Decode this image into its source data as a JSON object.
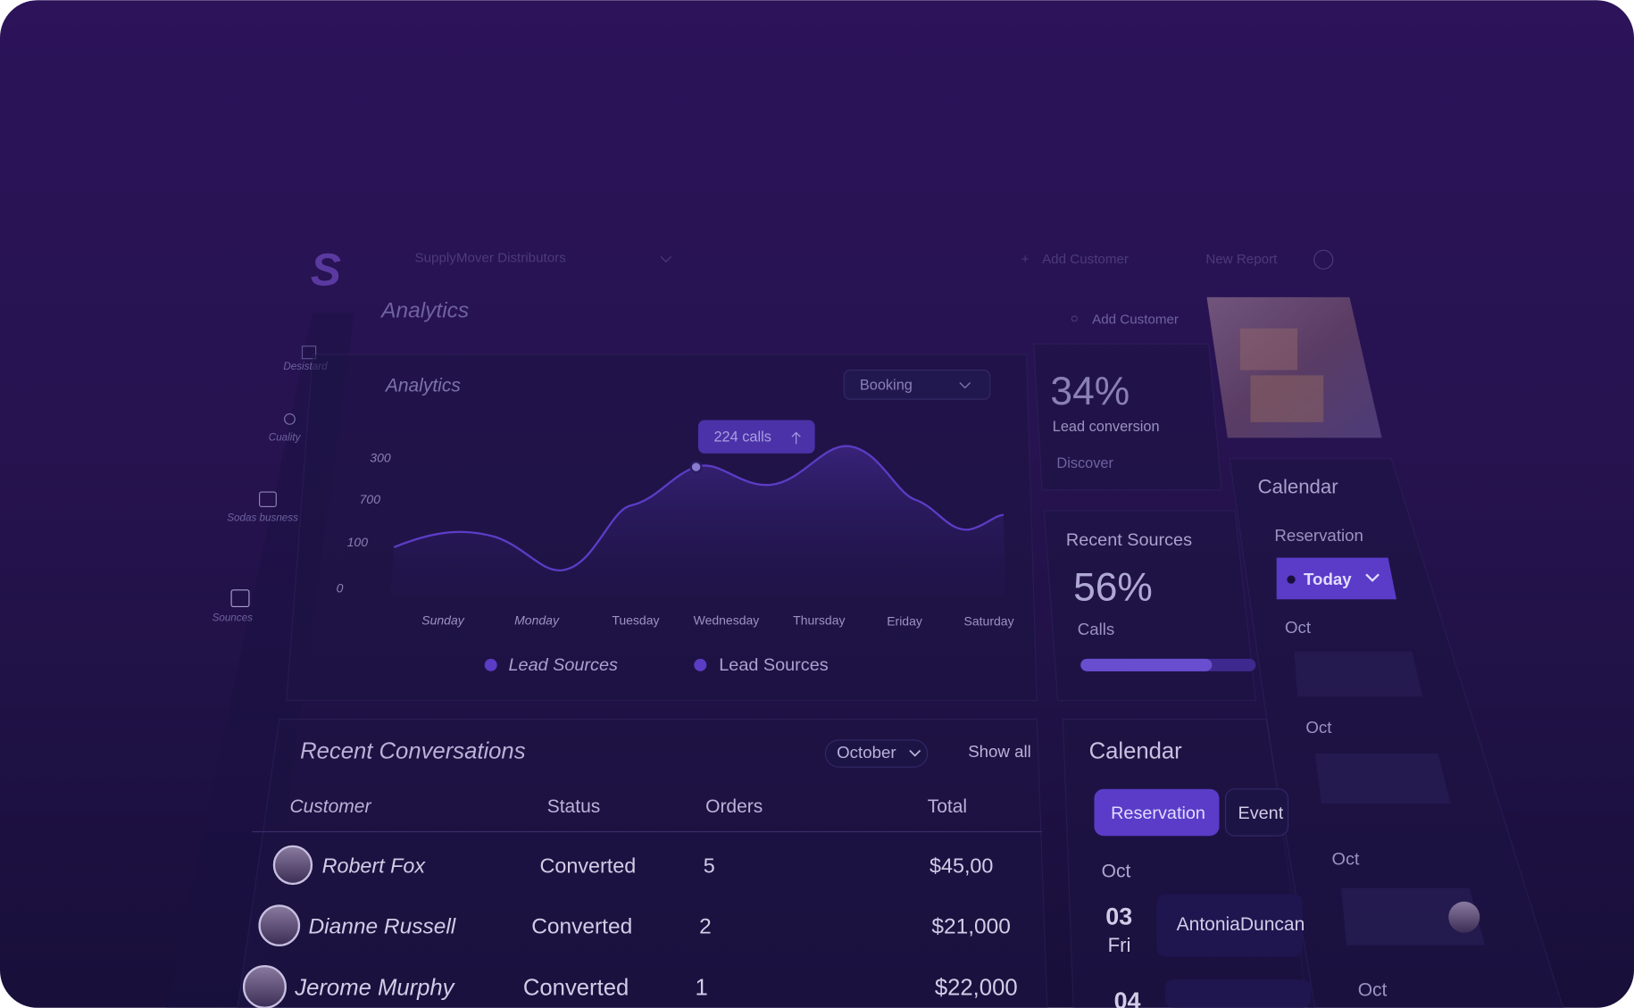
{
  "header": {
    "logo": "S",
    "organization": "SupplyMover Distributors",
    "add_customer": "Add Customer",
    "new_report": "New Report"
  },
  "page_title": "Analytics",
  "sidebar": [
    "Desistard",
    "Cuality",
    "Sodas busness",
    "Sounces"
  ],
  "analytics": {
    "title": "Analytics",
    "dropdown": "Booking",
    "tooltip": "224 calls",
    "y_labels": [
      "300",
      "700",
      "100",
      "0"
    ],
    "days": [
      "Sunday",
      "Monday",
      "Tuesday",
      "Wednesday",
      "Thursday",
      "Eriday",
      "Saturday"
    ],
    "legend": [
      "Lead Sources",
      "Lead Sources"
    ]
  },
  "stats": {
    "add_customer": "Add Customer",
    "value": "34%",
    "label": "Lead conversion",
    "link": "Discover"
  },
  "recent_sources": {
    "title": "Recent Sources",
    "value": "56%",
    "label": "Calls"
  },
  "calendar_panel": {
    "title": "Calendar",
    "subtitle": "Reservation",
    "filter": "Today",
    "months": [
      "Oct",
      "Oct",
      "Oct",
      "Oct"
    ]
  },
  "conversations": {
    "title": "Recent Conversations",
    "month": "October",
    "show_all": "Show all",
    "columns": [
      "Customer",
      "Status",
      "Orders",
      "Total"
    ],
    "rows": [
      [
        "Robert Fox",
        "Converted",
        "5",
        "$45,00"
      ],
      [
        "Dianne Russell",
        "Converted",
        "2",
        "$21,000"
      ],
      [
        "Jerome Murphy",
        "Converted",
        "1",
        "$22,000"
      ]
    ]
  },
  "calendar_card": {
    "title": "Calendar",
    "tabs": [
      "Reservation",
      "Event"
    ],
    "month": "Oct",
    "day": "03",
    "weekday": "Fri",
    "guest": "AntoniaDuncan",
    "next_day": "04"
  }
}
